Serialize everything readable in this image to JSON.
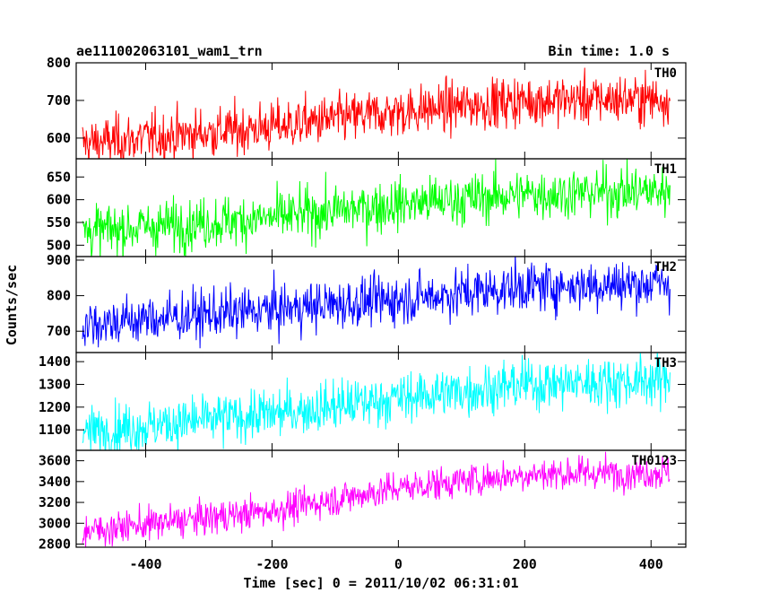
{
  "header": {
    "title": "ae111002063101_wam1_trn",
    "bin_time": "Bin time: 1.0 s"
  },
  "chart_data": {
    "type": "line",
    "xlabel": "Time [sec] 0 = 2011/10/02 06:31:01",
    "ylabel": "Counts/sec",
    "xlim": [
      -510,
      455
    ],
    "xticks": [
      -400,
      -200,
      0,
      200,
      400
    ],
    "x_range": [
      -500,
      430
    ],
    "grid": false,
    "panels": [
      {
        "name": "TH0",
        "color": "#ff0000",
        "ylim": [
          545,
          800
        ],
        "yticks": [
          600,
          700,
          800
        ],
        "trend": [
          [
            -500,
            585
          ],
          [
            -200,
            630
          ],
          [
            0,
            670
          ],
          [
            200,
            700
          ],
          [
            430,
            705
          ]
        ],
        "noise": 33
      },
      {
        "name": "TH1",
        "color": "#00ff00",
        "ylim": [
          475,
          690
        ],
        "yticks": [
          500,
          550,
          600,
          650
        ],
        "trend": [
          [
            -500,
            530
          ],
          [
            -200,
            560
          ],
          [
            0,
            590
          ],
          [
            200,
            612
          ],
          [
            430,
            620
          ]
        ],
        "noise": 28
      },
      {
        "name": "TH2",
        "color": "#0000ff",
        "ylim": [
          640,
          910
        ],
        "yticks": [
          700,
          800,
          900
        ],
        "trend": [
          [
            -500,
            720
          ],
          [
            -200,
            760
          ],
          [
            0,
            790
          ],
          [
            200,
            825
          ],
          [
            430,
            835
          ]
        ],
        "noise": 35
      },
      {
        "name": "TH3",
        "color": "#00ffff",
        "ylim": [
          1010,
          1440
        ],
        "yticks": [
          1100,
          1200,
          1300,
          1400
        ],
        "trend": [
          [
            -500,
            1090
          ],
          [
            -200,
            1170
          ],
          [
            0,
            1240
          ],
          [
            200,
            1300
          ],
          [
            430,
            1320
          ]
        ],
        "noise": 55
      },
      {
        "name": "TH0123",
        "color": "#ff00ff",
        "ylim": [
          2770,
          3700
        ],
        "yticks": [
          2800,
          3000,
          3200,
          3400,
          3600
        ],
        "trend": [
          [
            -500,
            2920
          ],
          [
            -200,
            3120
          ],
          [
            0,
            3340
          ],
          [
            200,
            3470
          ],
          [
            430,
            3490
          ]
        ],
        "noise": 80
      }
    ]
  }
}
